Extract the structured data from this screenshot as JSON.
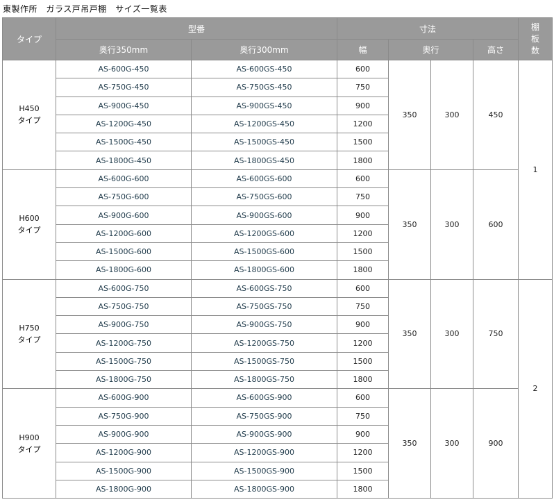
{
  "title": "東製作所　ガラス戸吊戸棚　サイズ一覧表",
  "headers": {
    "type": "タイプ",
    "model": "型番",
    "model_350": "奥行350mm",
    "model_300": "奥行300mm",
    "dimensions": "寸法",
    "width": "幅",
    "depth": "奥行",
    "height": "高さ",
    "shelves": "棚板数"
  },
  "groups": [
    {
      "type": "H450\nタイプ",
      "depth_350": "350",
      "depth_300": "300",
      "height": "450",
      "rows": [
        [
          "AS-600G-450",
          "AS-600GS-450",
          "600"
        ],
        [
          "AS-750G-450",
          "AS-750GS-450",
          "750"
        ],
        [
          "AS-900G-450",
          "AS-900GS-450",
          "900"
        ],
        [
          "AS-1200G-450",
          "AS-1200GS-450",
          "1200"
        ],
        [
          "AS-1500G-450",
          "AS-1500GS-450",
          "1500"
        ],
        [
          "AS-1800G-450",
          "AS-1800GS-450",
          "1800"
        ]
      ]
    },
    {
      "type": "H600\nタイプ",
      "depth_350": "350",
      "depth_300": "300",
      "height": "600",
      "rows": [
        [
          "AS-600G-600",
          "AS-600GS-600",
          "600"
        ],
        [
          "AS-750G-600",
          "AS-750GS-600",
          "750"
        ],
        [
          "AS-900G-600",
          "AS-900GS-600",
          "900"
        ],
        [
          "AS-1200G-600",
          "AS-1200GS-600",
          "1200"
        ],
        [
          "AS-1500G-600",
          "AS-1500GS-600",
          "1500"
        ],
        [
          "AS-1800G-600",
          "AS-1800GS-600",
          "1800"
        ]
      ]
    },
    {
      "type": "H750\nタイプ",
      "depth_350": "350",
      "depth_300": "300",
      "height": "750",
      "rows": [
        [
          "AS-600G-750",
          "AS-600GS-750",
          "600"
        ],
        [
          "AS-750G-750",
          "AS-750GS-750",
          "750"
        ],
        [
          "AS-900G-750",
          "AS-900GS-750",
          "900"
        ],
        [
          "AS-1200G-750",
          "AS-1200GS-750",
          "1200"
        ],
        [
          "AS-1500G-750",
          "AS-1500GS-750",
          "1500"
        ],
        [
          "AS-1800G-750",
          "AS-1800GS-750",
          "1800"
        ]
      ]
    },
    {
      "type": "H900\nタイプ",
      "depth_350": "350",
      "depth_300": "300",
      "height": "900",
      "rows": [
        [
          "AS-600G-900",
          "AS-600GS-900",
          "600"
        ],
        [
          "AS-750G-900",
          "AS-750GS-900",
          "750"
        ],
        [
          "AS-900G-900",
          "AS-900GS-900",
          "900"
        ],
        [
          "AS-1200G-900",
          "AS-1200GS-900",
          "1200"
        ],
        [
          "AS-1500G-900",
          "AS-1500GS-900",
          "1500"
        ],
        [
          "AS-1800G-900",
          "AS-1800GS-900",
          "1800"
        ]
      ]
    }
  ],
  "shelves": [
    {
      "value": "1",
      "groups": 2
    },
    {
      "value": "2",
      "groups": 2
    }
  ]
}
